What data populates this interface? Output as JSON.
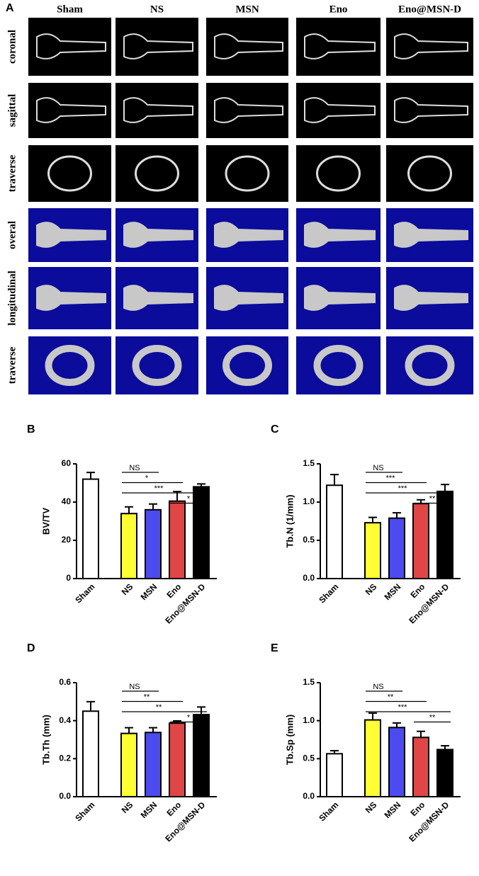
{
  "panel_a": {
    "label": "A",
    "columns": [
      "Sham",
      "NS",
      "MSN",
      "Eno",
      "Eno@MSN-D"
    ],
    "rows": [
      "coronal",
      "sagittal",
      "traverse",
      "overal",
      "longitudinal",
      "traverse"
    ]
  },
  "chart_data": [
    {
      "type": "bar",
      "panel": "B",
      "ylabel": "BV/TV",
      "categories": [
        "Sham",
        "NS",
        "MSN",
        "Eno",
        "Eno@MSN-D"
      ],
      "values": [
        52,
        34,
        36,
        40.5,
        48
      ],
      "errors": [
        3.5,
        3.5,
        3,
        5,
        1.5
      ],
      "colors": [
        "#ffffff",
        "#ffff33",
        "#4b4bf0",
        "#e04646",
        "#000000"
      ],
      "ylim": [
        0,
        60
      ],
      "yticks": [
        0,
        20,
        40,
        60
      ],
      "significance": [
        {
          "from": "NS",
          "to": "MSN",
          "label": "NS"
        },
        {
          "from": "NS",
          "to": "Eno",
          "label": "*"
        },
        {
          "from": "NS",
          "to": "Eno@MSN-D",
          "label": "***"
        },
        {
          "from": "Eno",
          "to": "Eno@MSN-D",
          "label": "*"
        }
      ]
    },
    {
      "type": "bar",
      "panel": "C",
      "ylabel": "Tb.N (1/mm)",
      "categories": [
        "Sham",
        "NS",
        "MSN",
        "Eno",
        "Eno@MSN-D"
      ],
      "values": [
        1.22,
        0.73,
        0.79,
        0.98,
        1.14
      ],
      "errors": [
        0.14,
        0.07,
        0.07,
        0.05,
        0.09
      ],
      "colors": [
        "#ffffff",
        "#ffff33",
        "#4b4bf0",
        "#e04646",
        "#000000"
      ],
      "ylim": [
        0,
        1.5
      ],
      "yticks": [
        {
          "value": 0,
          "label": "0.0"
        },
        0.5,
        {
          "value": 1,
          "label": "1.0"
        },
        1.5
      ],
      "significance": [
        {
          "from": "NS",
          "to": "MSN",
          "label": "NS"
        },
        {
          "from": "NS",
          "to": "Eno",
          "label": "***"
        },
        {
          "from": "NS",
          "to": "Eno@MSN-D",
          "label": "***"
        },
        {
          "from": "Eno",
          "to": "Eno@MSN-D",
          "label": "**"
        }
      ]
    },
    {
      "type": "bar",
      "panel": "D",
      "ylabel": "Tb.Th (mm)",
      "categories": [
        "Sham",
        "NS",
        "MSN",
        "Eno",
        "Eno@MSN-D"
      ],
      "values": [
        0.45,
        0.333,
        0.338,
        0.387,
        0.432
      ],
      "errors": [
        0.05,
        0.03,
        0.025,
        0.012,
        0.04
      ],
      "colors": [
        "#ffffff",
        "#ffff33",
        "#4b4bf0",
        "#e04646",
        "#000000"
      ],
      "ylim": [
        0,
        0.6
      ],
      "yticks": [
        {
          "value": 0,
          "label": "0.0"
        },
        0.2,
        0.4,
        0.6
      ],
      "significance": [
        {
          "from": "NS",
          "to": "MSN",
          "label": "NS"
        },
        {
          "from": "NS",
          "to": "Eno",
          "label": "**"
        },
        {
          "from": "NS",
          "to": "Eno@MSN-D",
          "label": "**"
        },
        {
          "from": "Eno",
          "to": "Eno@MSN-D",
          "label": "*"
        }
      ]
    },
    {
      "type": "bar",
      "panel": "E",
      "ylabel": "Tb.Sp (mm)",
      "categories": [
        "Sham",
        "NS",
        "MSN",
        "Eno",
        "Eno@MSN-D"
      ],
      "values": [
        0.565,
        1.01,
        0.91,
        0.78,
        0.62
      ],
      "errors": [
        0.04,
        0.09,
        0.06,
        0.08,
        0.05
      ],
      "colors": [
        "#ffffff",
        "#ffff33",
        "#4b4bf0",
        "#e04646",
        "#000000"
      ],
      "ylim": [
        0,
        1.5
      ],
      "yticks": [
        {
          "value": 0,
          "label": "0.0"
        },
        0.5,
        {
          "value": 1,
          "label": "1.0"
        },
        1.5
      ],
      "significance": [
        {
          "from": "NS",
          "to": "MSN",
          "label": "NS"
        },
        {
          "from": "NS",
          "to": "Eno",
          "label": "**"
        },
        {
          "from": "NS",
          "to": "Eno@MSN-D",
          "label": "***"
        },
        {
          "from": "Eno",
          "to": "Eno@MSN-D",
          "label": "**"
        }
      ]
    }
  ]
}
